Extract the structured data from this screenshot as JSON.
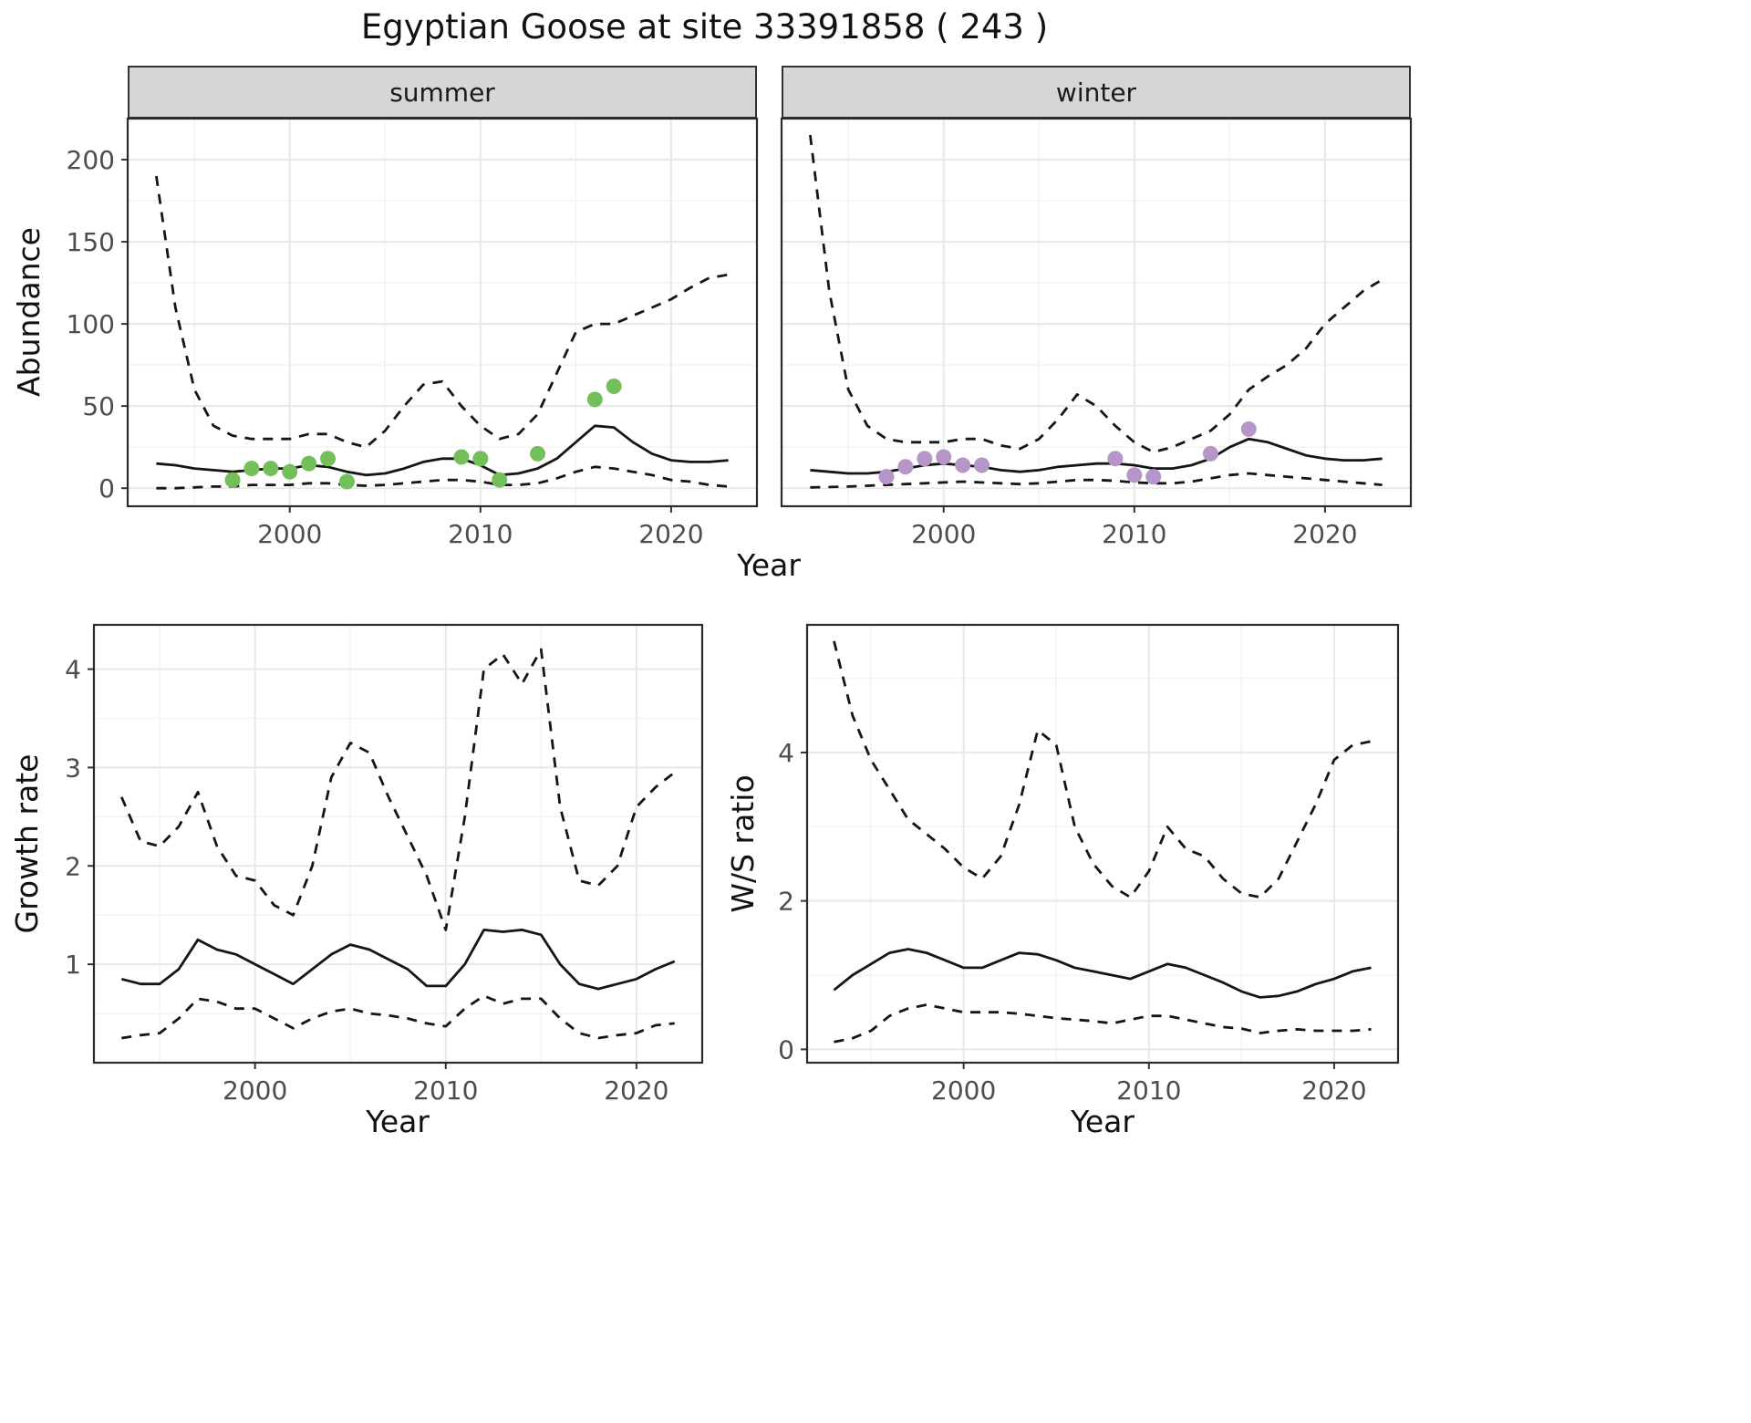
{
  "title": "Egyptian Goose at site 33391858 ( 243 )",
  "axis_labels": {
    "abundance": "Abundance",
    "year": "Year",
    "growth_rate": "Growth rate",
    "ws_ratio": "W/S ratio"
  },
  "facets": {
    "summer": "summer",
    "winter": "winter"
  },
  "colors": {
    "summer_points": "#73bf59",
    "winter_points": "#b695c9",
    "line": "#151515",
    "strip_bg": "#d6d6d6",
    "grid_major": "#e8e8e8",
    "grid_minor": "#f3f3f3"
  },
  "chart_data": [
    {
      "id": "abundance_summer",
      "type": "line",
      "facet": "summer",
      "ylabel": "Abundance",
      "xlabel": "Year",
      "xlim": [
        1991.5,
        2024.5
      ],
      "ylim": [
        -11,
        225
      ],
      "xticks": [
        2000,
        2010,
        2020
      ],
      "yticks": [
        0,
        50,
        100,
        150,
        200
      ],
      "show_y_labels": true,
      "grid": true,
      "series": [
        {
          "name": "fitted_abundance",
          "style": "solid",
          "x": [
            1993,
            1994,
            1995,
            1996,
            1997,
            1998,
            1999,
            2000,
            2001,
            2002,
            2003,
            2004,
            2005,
            2006,
            2007,
            2008,
            2009,
            2010,
            2011,
            2012,
            2013,
            2014,
            2015,
            2016,
            2017,
            2018,
            2019,
            2020,
            2021,
            2022,
            2023
          ],
          "y": [
            15,
            14,
            12,
            11,
            10,
            11,
            12,
            12,
            14,
            13,
            10,
            8,
            9,
            12,
            16,
            18,
            18,
            14,
            8,
            9,
            12,
            18,
            28,
            38,
            37,
            28,
            21,
            17,
            16,
            16,
            17
          ]
        },
        {
          "name": "upper_95ci",
          "style": "dashed",
          "x": [
            1993,
            1994,
            1995,
            1996,
            1997,
            1998,
            1999,
            2000,
            2001,
            2002,
            2003,
            2004,
            2005,
            2006,
            2007,
            2008,
            2009,
            2010,
            2011,
            2012,
            2013,
            2014,
            2015,
            2016,
            2017,
            2018,
            2019,
            2020,
            2021,
            2022,
            2023
          ],
          "y": [
            190,
            110,
            60,
            38,
            32,
            30,
            30,
            30,
            33,
            33,
            28,
            25,
            35,
            50,
            63,
            65,
            50,
            38,
            30,
            33,
            45,
            70,
            95,
            100,
            100,
            105,
            110,
            115,
            122,
            128,
            130
          ]
        },
        {
          "name": "lower_95ci",
          "style": "dashed",
          "x": [
            1993,
            1994,
            1995,
            1996,
            1997,
            1998,
            1999,
            2000,
            2001,
            2002,
            2003,
            2004,
            2005,
            2006,
            2007,
            2008,
            2009,
            2010,
            2011,
            2012,
            2013,
            2014,
            2015,
            2016,
            2017,
            2018,
            2019,
            2020,
            2021,
            2022,
            2023
          ],
          "y": [
            0,
            0,
            0.5,
            1,
            1,
            2,
            2,
            2,
            3,
            3,
            2,
            1.5,
            2,
            3,
            4,
            5,
            5,
            4,
            2,
            2,
            3,
            6,
            10,
            13,
            12,
            10,
            8,
            5,
            4,
            2,
            1
          ]
        }
      ],
      "points": {
        "name": "observed_counts_summer",
        "color": "#73bf59",
        "x": [
          1997,
          1998,
          1999,
          2000,
          2001,
          2002,
          2003,
          2009,
          2010,
          2011,
          2013,
          2016,
          2017
        ],
        "y": [
          5,
          12,
          12,
          10,
          15,
          18,
          4,
          19,
          18,
          5,
          21,
          54,
          62
        ]
      }
    },
    {
      "id": "abundance_winter",
      "type": "line",
      "facet": "winter",
      "ylabel": "Abundance",
      "xlabel": "Year",
      "xlim": [
        1991.5,
        2024.5
      ],
      "ylim": [
        -11,
        225
      ],
      "xticks": [
        2000,
        2010,
        2020
      ],
      "yticks": [
        0,
        50,
        100,
        150,
        200
      ],
      "show_y_labels": false,
      "grid": true,
      "series": [
        {
          "name": "fitted_abundance",
          "style": "solid",
          "x": [
            1993,
            1994,
            1995,
            1996,
            1997,
            1998,
            1999,
            2000,
            2001,
            2002,
            2003,
            2004,
            2005,
            2006,
            2007,
            2008,
            2009,
            2010,
            2011,
            2012,
            2013,
            2014,
            2015,
            2016,
            2017,
            2018,
            2019,
            2020,
            2021,
            2022,
            2023
          ],
          "y": [
            11,
            10,
            9,
            9,
            10,
            12,
            14,
            15,
            14,
            13,
            11,
            10,
            11,
            13,
            14,
            15,
            15,
            14,
            12,
            12,
            14,
            18,
            25,
            30,
            28,
            24,
            20,
            18,
            17,
            17,
            18
          ]
        },
        {
          "name": "upper_95ci",
          "style": "dashed",
          "x": [
            1993,
            1994,
            1995,
            1996,
            1997,
            1998,
            1999,
            2000,
            2001,
            2002,
            2003,
            2004,
            2005,
            2006,
            2007,
            2008,
            2009,
            2010,
            2011,
            2012,
            2013,
            2014,
            2015,
            2016,
            2017,
            2018,
            2019,
            2020,
            2021,
            2022,
            2023
          ],
          "y": [
            215,
            120,
            60,
            38,
            30,
            28,
            28,
            28,
            30,
            30,
            26,
            24,
            30,
            42,
            57,
            50,
            38,
            28,
            22,
            25,
            30,
            35,
            45,
            60,
            68,
            75,
            85,
            100,
            110,
            120,
            127
          ]
        },
        {
          "name": "lower_95ci",
          "style": "dashed",
          "x": [
            1993,
            1994,
            1995,
            1996,
            1997,
            1998,
            1999,
            2000,
            2001,
            2002,
            2003,
            2004,
            2005,
            2006,
            2007,
            2008,
            2009,
            2010,
            2011,
            2012,
            2013,
            2014,
            2015,
            2016,
            2017,
            2018,
            2019,
            2020,
            2021,
            2022,
            2023
          ],
          "y": [
            0.5,
            0.7,
            1,
            1.5,
            2,
            2.5,
            3,
            3.5,
            4,
            3.5,
            3,
            2.5,
            3,
            4,
            5,
            5,
            4.5,
            3.5,
            3,
            3,
            4,
            6,
            8,
            9,
            8,
            7,
            6,
            5,
            4,
            3,
            2
          ]
        }
      ],
      "points": {
        "name": "observed_counts_winter",
        "color": "#b695c9",
        "x": [
          1997,
          1998,
          1999,
          2000,
          2001,
          2002,
          2009,
          2010,
          2011,
          2014,
          2016
        ],
        "y": [
          7,
          13,
          18,
          19,
          14,
          14,
          18,
          8,
          7,
          21,
          36
        ]
      }
    },
    {
      "id": "growth_rate",
      "type": "line",
      "ylabel": "Growth rate",
      "xlabel": "Year",
      "xlim": [
        1991.55,
        2023.45
      ],
      "ylim": [
        0,
        4.45
      ],
      "xticks": [
        2000,
        2010,
        2020
      ],
      "yticks": [
        1,
        2,
        3,
        4
      ],
      "show_y_labels": true,
      "grid": true,
      "series": [
        {
          "name": "fitted_growth_rate",
          "style": "solid",
          "x": [
            1993,
            1994,
            1995,
            1996,
            1997,
            1998,
            1999,
            2000,
            2001,
            2002,
            2003,
            2004,
            2005,
            2006,
            2007,
            2008,
            2009,
            2010,
            2011,
            2012,
            2013,
            2014,
            2015,
            2016,
            2017,
            2018,
            2019,
            2020,
            2021,
            2022
          ],
          "y": [
            0.85,
            0.8,
            0.8,
            0.95,
            1.25,
            1.15,
            1.1,
            1.0,
            0.9,
            0.8,
            0.95,
            1.1,
            1.2,
            1.15,
            1.05,
            0.95,
            0.78,
            0.78,
            1.0,
            1.35,
            1.33,
            1.35,
            1.3,
            1.0,
            0.8,
            0.75,
            0.8,
            0.85,
            0.95,
            1.03
          ]
        },
        {
          "name": "upper_95ci",
          "style": "dashed",
          "x": [
            1993,
            1994,
            1995,
            1996,
            1997,
            1998,
            1999,
            2000,
            2001,
            2002,
            2003,
            2004,
            2005,
            2006,
            2007,
            2008,
            2009,
            2010,
            2011,
            2012,
            2013,
            2014,
            2015,
            2016,
            2017,
            2018,
            2019,
            2020,
            2021,
            2022
          ],
          "y": [
            2.7,
            2.25,
            2.2,
            2.4,
            2.75,
            2.2,
            1.9,
            1.85,
            1.6,
            1.5,
            2.0,
            2.9,
            3.25,
            3.15,
            2.7,
            2.3,
            1.9,
            1.35,
            2.5,
            4.0,
            4.15,
            3.85,
            4.2,
            2.6,
            1.85,
            1.8,
            2.0,
            2.6,
            2.8,
            2.95
          ]
        },
        {
          "name": "lower_95ci",
          "style": "dashed",
          "x": [
            1993,
            1994,
            1995,
            1996,
            1997,
            1998,
            1999,
            2000,
            2001,
            2002,
            2003,
            2004,
            2005,
            2006,
            2007,
            2008,
            2009,
            2010,
            2011,
            2012,
            2013,
            2014,
            2015,
            2016,
            2017,
            2018,
            2019,
            2020,
            2021,
            2022
          ],
          "y": [
            0.25,
            0.28,
            0.3,
            0.45,
            0.65,
            0.62,
            0.55,
            0.55,
            0.45,
            0.35,
            0.45,
            0.52,
            0.55,
            0.5,
            0.48,
            0.45,
            0.4,
            0.37,
            0.55,
            0.68,
            0.6,
            0.65,
            0.65,
            0.45,
            0.3,
            0.25,
            0.28,
            0.3,
            0.38,
            0.4
          ]
        }
      ]
    },
    {
      "id": "ws_ratio",
      "type": "line",
      "ylabel": "W/S ratio",
      "xlabel": "Year",
      "xlim": [
        1991.55,
        2023.45
      ],
      "ylim": [
        -0.18,
        5.72
      ],
      "xticks": [
        2000,
        2010,
        2020
      ],
      "yticks": [
        0,
        2,
        4
      ],
      "show_y_labels": true,
      "grid": true,
      "series": [
        {
          "name": "fitted_ws_ratio",
          "style": "solid",
          "x": [
            1993,
            1994,
            1995,
            1996,
            1997,
            1998,
            1999,
            2000,
            2001,
            2002,
            2003,
            2004,
            2005,
            2006,
            2007,
            2008,
            2009,
            2010,
            2011,
            2012,
            2013,
            2014,
            2015,
            2016,
            2017,
            2018,
            2019,
            2020,
            2021,
            2022
          ],
          "y": [
            0.8,
            1.0,
            1.15,
            1.3,
            1.35,
            1.3,
            1.2,
            1.1,
            1.1,
            1.2,
            1.3,
            1.28,
            1.2,
            1.1,
            1.05,
            1.0,
            0.95,
            1.05,
            1.15,
            1.1,
            1.0,
            0.9,
            0.78,
            0.7,
            0.72,
            0.78,
            0.88,
            0.95,
            1.05,
            1.1
          ]
        },
        {
          "name": "upper_95ci",
          "style": "dashed",
          "x": [
            1993,
            1994,
            1995,
            1996,
            1997,
            1998,
            1999,
            2000,
            2001,
            2002,
            2003,
            2004,
            2005,
            2006,
            2007,
            2008,
            2009,
            2010,
            2011,
            2012,
            2013,
            2014,
            2015,
            2016,
            2017,
            2018,
            2019,
            2020,
            2021,
            2022
          ],
          "y": [
            5.5,
            4.5,
            3.9,
            3.5,
            3.1,
            2.9,
            2.7,
            2.45,
            2.3,
            2.6,
            3.3,
            4.3,
            4.1,
            3.0,
            2.5,
            2.2,
            2.05,
            2.4,
            3.0,
            2.7,
            2.6,
            2.3,
            2.1,
            2.05,
            2.3,
            2.8,
            3.3,
            3.9,
            4.1,
            4.15
          ]
        },
        {
          "name": "lower_95ci",
          "style": "dashed",
          "x": [
            1993,
            1994,
            1995,
            1996,
            1997,
            1998,
            1999,
            2000,
            2001,
            2002,
            2003,
            2004,
            2005,
            2006,
            2007,
            2008,
            2009,
            2010,
            2011,
            2012,
            2013,
            2014,
            2015,
            2016,
            2017,
            2018,
            2019,
            2020,
            2021,
            2022
          ],
          "y": [
            0.1,
            0.15,
            0.25,
            0.45,
            0.55,
            0.6,
            0.55,
            0.5,
            0.5,
            0.5,
            0.48,
            0.45,
            0.42,
            0.4,
            0.38,
            0.35,
            0.4,
            0.45,
            0.45,
            0.4,
            0.35,
            0.3,
            0.28,
            0.22,
            0.25,
            0.27,
            0.25,
            0.25,
            0.25,
            0.27
          ]
        }
      ]
    }
  ]
}
